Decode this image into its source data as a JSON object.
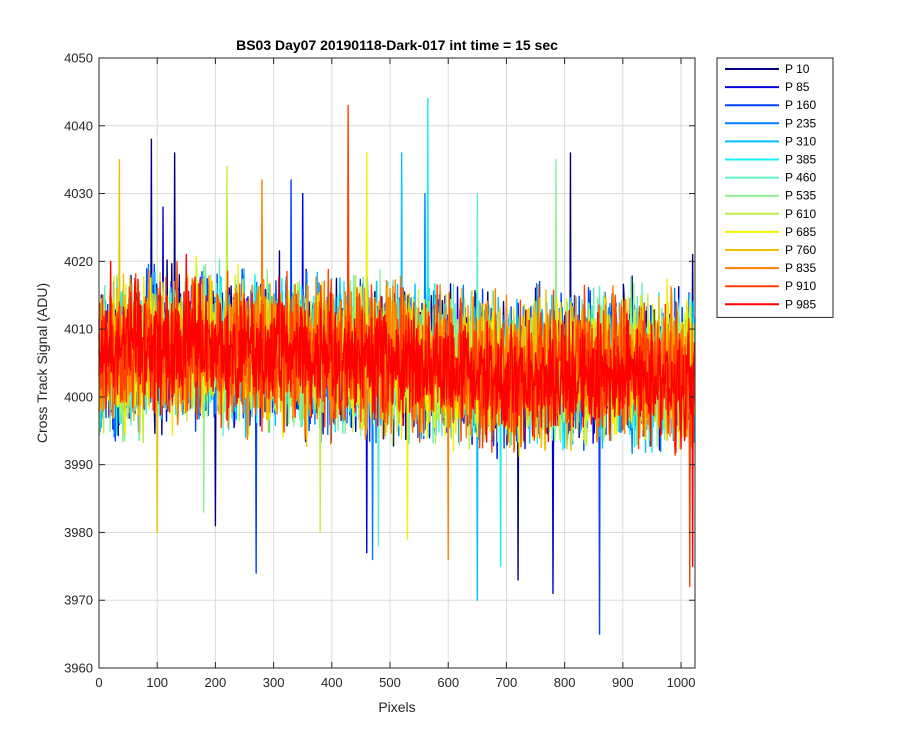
{
  "chart_data": {
    "type": "line",
    "title": "BS03 Day07 20190118-Dark-017 int time = 15 sec",
    "xlabel": "Pixels",
    "ylabel": "Cross Track Signal (ADU)",
    "xlim": [
      0,
      1024
    ],
    "ylim": [
      3960,
      4050
    ],
    "xticks": [
      0,
      100,
      200,
      300,
      400,
      500,
      600,
      700,
      800,
      900,
      1000
    ],
    "yticks": [
      3960,
      3970,
      3980,
      3990,
      4000,
      4010,
      4020,
      4030,
      4040,
      4050
    ],
    "grid": true,
    "legend_position": "outside-top-right",
    "points_per_series": 1024,
    "series": [
      {
        "name": "P 10",
        "color": "#000080",
        "mean_profile": [
          [
            0,
            4004
          ],
          [
            100,
            4007
          ],
          [
            300,
            4006
          ],
          [
            500,
            4005
          ],
          [
            700,
            4003
          ],
          [
            900,
            4004
          ],
          [
            1024,
            4003
          ]
        ],
        "noise_range": [
          -14,
          16
        ],
        "peaks": [
          [
            90,
            4038
          ],
          [
            130,
            4036
          ],
          [
            810,
            4036
          ],
          [
            1020,
            4021
          ]
        ],
        "dips": [
          [
            200,
            3981
          ],
          [
            720,
            3973
          ]
        ]
      },
      {
        "name": "P 85",
        "color": "#0000DD",
        "mean_profile": [
          [
            0,
            4004
          ],
          [
            100,
            4007
          ],
          [
            300,
            4006
          ],
          [
            500,
            4005
          ],
          [
            700,
            4003
          ],
          [
            900,
            4004
          ],
          [
            1024,
            4003
          ]
        ],
        "noise_range": [
          -14,
          15
        ],
        "peaks": [
          [
            110,
            4028
          ],
          [
            350,
            4030
          ]
        ],
        "dips": [
          [
            460,
            3977
          ],
          [
            780,
            3971
          ]
        ]
      },
      {
        "name": "P 160",
        "color": "#0040FF",
        "mean_profile": [
          [
            0,
            4004
          ],
          [
            100,
            4007
          ],
          [
            300,
            4006
          ],
          [
            500,
            4005
          ],
          [
            700,
            4003
          ],
          [
            900,
            4004
          ],
          [
            1024,
            4003
          ]
        ],
        "noise_range": [
          -14,
          15
        ],
        "peaks": [
          [
            330,
            4032
          ]
        ],
        "dips": [
          [
            270,
            3974
          ],
          [
            860,
            3965
          ]
        ]
      },
      {
        "name": "P 235",
        "color": "#0080FF",
        "mean_profile": [
          [
            0,
            4004
          ],
          [
            100,
            4007
          ],
          [
            300,
            4006
          ],
          [
            500,
            4005
          ],
          [
            700,
            4003
          ],
          [
            900,
            4004
          ],
          [
            1024,
            4003
          ]
        ],
        "noise_range": [
          -14,
          15
        ],
        "peaks": [
          [
            560,
            4030
          ]
        ],
        "dips": [
          [
            470,
            3976
          ]
        ]
      },
      {
        "name": "P 310",
        "color": "#00C0FF",
        "mean_profile": [
          [
            0,
            4004
          ],
          [
            100,
            4007
          ],
          [
            300,
            4006
          ],
          [
            500,
            4005
          ],
          [
            700,
            4003
          ],
          [
            900,
            4004
          ],
          [
            1024,
            4003
          ]
        ],
        "noise_range": [
          -14,
          15
        ],
        "peaks": [
          [
            520,
            4036
          ]
        ],
        "dips": [
          [
            650,
            3970
          ]
        ]
      },
      {
        "name": "P 385",
        "color": "#10F0F0",
        "mean_profile": [
          [
            0,
            4004
          ],
          [
            100,
            4007
          ],
          [
            300,
            4006
          ],
          [
            500,
            4005
          ],
          [
            700,
            4003
          ],
          [
            900,
            4004
          ],
          [
            1024,
            4003
          ]
        ],
        "noise_range": [
          -14,
          15
        ],
        "peaks": [
          [
            565,
            4044
          ]
        ],
        "dips": [
          [
            690,
            3975
          ]
        ]
      },
      {
        "name": "P 460",
        "color": "#60F0C0",
        "mean_profile": [
          [
            0,
            4004
          ],
          [
            100,
            4007
          ],
          [
            300,
            4006
          ],
          [
            500,
            4005
          ],
          [
            700,
            4003
          ],
          [
            900,
            4004
          ],
          [
            1024,
            4003
          ]
        ],
        "noise_range": [
          -14,
          15
        ],
        "peaks": [
          [
            650,
            4030
          ]
        ],
        "dips": [
          [
            480,
            3978
          ]
        ]
      },
      {
        "name": "P 535",
        "color": "#90F090",
        "mean_profile": [
          [
            0,
            4004
          ],
          [
            100,
            4007
          ],
          [
            300,
            4006
          ],
          [
            500,
            4005
          ],
          [
            700,
            4003
          ],
          [
            900,
            4004
          ],
          [
            1024,
            4003
          ]
        ],
        "noise_range": [
          -14,
          15
        ],
        "peaks": [
          [
            785,
            4035
          ]
        ],
        "dips": [
          [
            180,
            3983
          ]
        ]
      },
      {
        "name": "P 610",
        "color": "#C0F040",
        "mean_profile": [
          [
            0,
            4004
          ],
          [
            100,
            4007
          ],
          [
            300,
            4006
          ],
          [
            500,
            4005
          ],
          [
            700,
            4003
          ],
          [
            900,
            4004
          ],
          [
            1024,
            4003
          ]
        ],
        "noise_range": [
          -14,
          15
        ],
        "peaks": [
          [
            220,
            4034
          ]
        ],
        "dips": [
          [
            380,
            3980
          ]
        ]
      },
      {
        "name": "P 685",
        "color": "#F0F000",
        "mean_profile": [
          [
            0,
            4004
          ],
          [
            100,
            4007
          ],
          [
            300,
            4006
          ],
          [
            500,
            4005
          ],
          [
            700,
            4003
          ],
          [
            900,
            4004
          ],
          [
            1024,
            4003
          ]
        ],
        "noise_range": [
          -14,
          15
        ],
        "peaks": [
          [
            460,
            4036
          ]
        ],
        "dips": [
          [
            530,
            3979
          ]
        ]
      },
      {
        "name": "P 760",
        "color": "#F0C000",
        "mean_profile": [
          [
            0,
            4004
          ],
          [
            100,
            4007
          ],
          [
            300,
            4006
          ],
          [
            500,
            4005
          ],
          [
            700,
            4003
          ],
          [
            900,
            4004
          ],
          [
            1024,
            4003
          ]
        ],
        "noise_range": [
          -14,
          15
        ],
        "peaks": [
          [
            35,
            4035
          ]
        ],
        "dips": [
          [
            100,
            3980
          ]
        ]
      },
      {
        "name": "P 835",
        "color": "#FF8000",
        "mean_profile": [
          [
            0,
            4004
          ],
          [
            100,
            4007
          ],
          [
            300,
            4006
          ],
          [
            500,
            4005
          ],
          [
            700,
            4003
          ],
          [
            900,
            4004
          ],
          [
            1024,
            4003
          ]
        ],
        "noise_range": [
          -14,
          15
        ],
        "peaks": [
          [
            280,
            4032
          ]
        ],
        "dips": [
          [
            600,
            3976
          ]
        ]
      },
      {
        "name": "P 910",
        "color": "#FF4000",
        "mean_profile": [
          [
            0,
            4004
          ],
          [
            100,
            4007
          ],
          [
            300,
            4006
          ],
          [
            500,
            4005
          ],
          [
            700,
            4003
          ],
          [
            900,
            4004
          ],
          [
            1024,
            4003
          ]
        ],
        "noise_range": [
          -14,
          15
        ],
        "peaks": [
          [
            428,
            4043
          ]
        ],
        "dips": [
          [
            1015,
            3972
          ]
        ]
      },
      {
        "name": "P 985",
        "color": "#FF0000",
        "mean_profile": [
          [
            0,
            4006
          ],
          [
            100,
            4008
          ],
          [
            300,
            4007
          ],
          [
            500,
            4005
          ],
          [
            700,
            4003
          ],
          [
            900,
            4003
          ],
          [
            1024,
            4002
          ]
        ],
        "noise_range": [
          -12,
          12
        ],
        "peaks": [
          [
            20,
            4020
          ],
          [
            150,
            4021
          ]
        ],
        "dips": [
          [
            1020,
            3975
          ]
        ]
      }
    ]
  }
}
